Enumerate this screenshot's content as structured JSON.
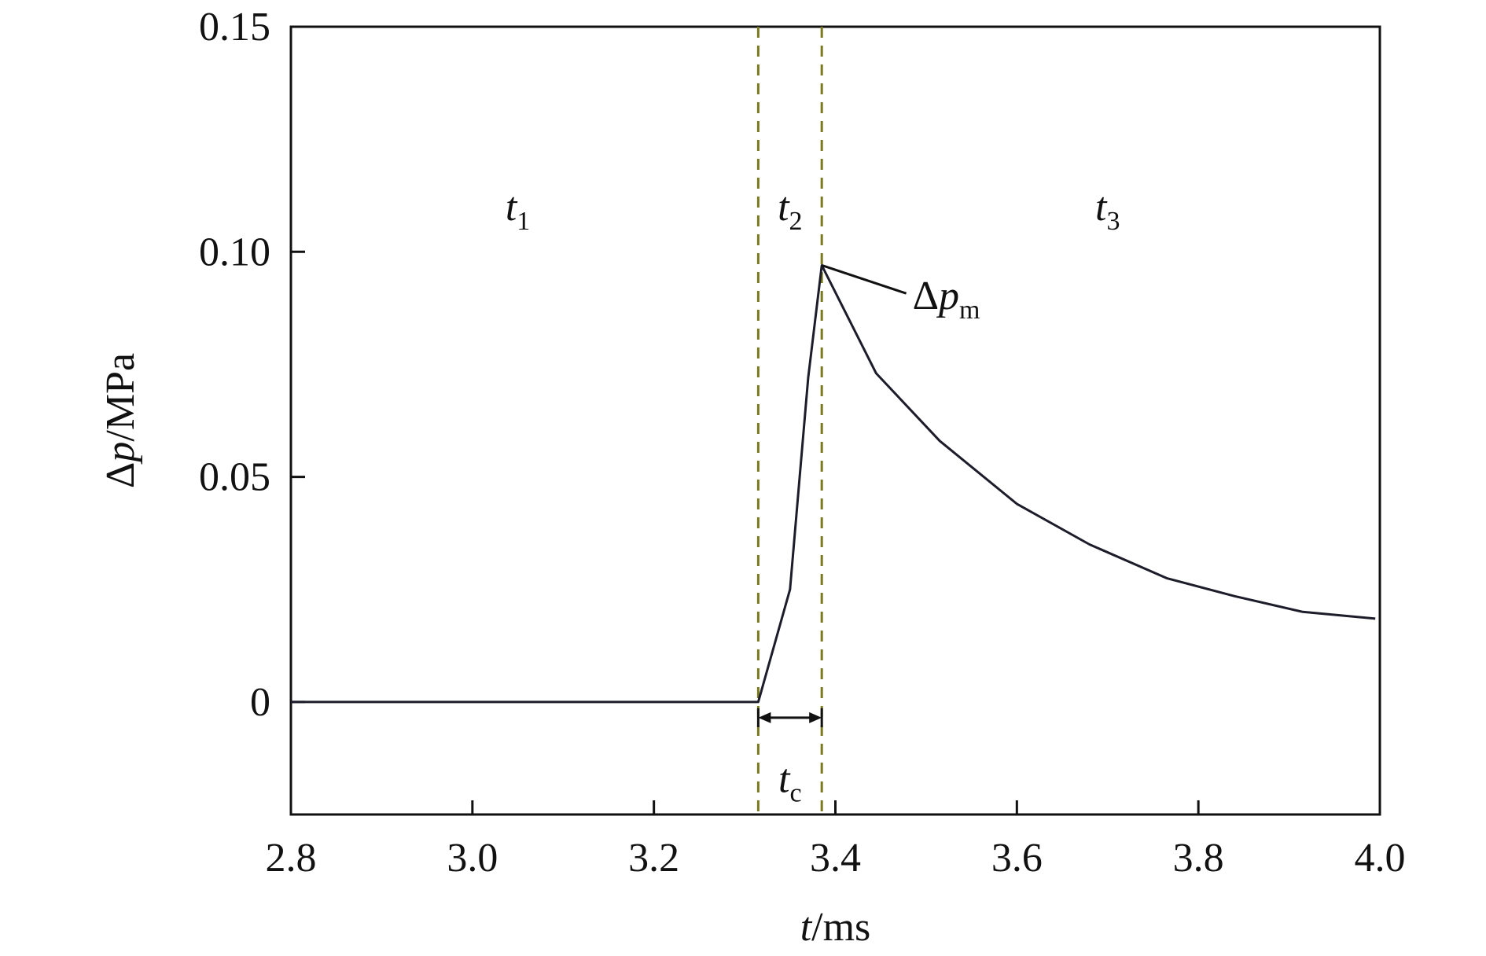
{
  "chart_data": {
    "type": "line",
    "title": "",
    "xlabel": {
      "var": "t",
      "unit": "/ms"
    },
    "ylabel": {
      "var": "p",
      "prefix": "Δ",
      "unit": "/MPa"
    },
    "xlim": [
      2.8,
      4.0
    ],
    "ylim": [
      -0.025,
      0.15
    ],
    "xticks": [
      2.8,
      3.0,
      3.2,
      3.4,
      3.6,
      3.8,
      4.0
    ],
    "xtick_labels": [
      "2.8",
      "3.0",
      "3.2",
      "3.4",
      "3.6",
      "3.8",
      "4.0"
    ],
    "yticks": [
      0,
      0.05,
      0.1,
      0.15
    ],
    "ytick_labels": [
      "0",
      "0.05",
      "0.10",
      "0.15"
    ],
    "grid": false,
    "series": [
      {
        "x": [
          2.8,
          3.315,
          3.35,
          3.37,
          3.385,
          3.445,
          3.515,
          3.6,
          3.68,
          3.765,
          3.84,
          3.915,
          3.995
        ],
        "y": [
          0.0,
          0.0,
          0.025,
          0.072,
          0.097,
          0.073,
          0.058,
          0.044,
          0.035,
          0.0275,
          0.0235,
          0.02,
          0.0185
        ],
        "color": "#1c1c2a"
      }
    ],
    "vlines": [
      {
        "x": 3.315,
        "style": "dashed",
        "color": "#7a7a1e"
      },
      {
        "x": 3.385,
        "style": "dashed",
        "color": "#7a7a1e"
      }
    ],
    "annotations": {
      "t1": {
        "var": "t",
        "sub": "1",
        "x": 3.05,
        "y": 0.107
      },
      "t2": {
        "var": "t",
        "sub": "2",
        "x": 3.35,
        "y": 0.107
      },
      "t3": {
        "var": "t",
        "sub": "3",
        "x": 3.7,
        "y": 0.107
      },
      "tc": {
        "var": "t",
        "sub": "c",
        "x": 3.35,
        "y": -0.013,
        "span": [
          3.315,
          3.385
        ],
        "span_y": -0.0035
      },
      "peak": {
        "prefix": "Δ",
        "var": "p",
        "sub": "m",
        "x": 3.385,
        "y": 0.097,
        "label_x": 3.485,
        "label_y": 0.0925
      }
    }
  }
}
